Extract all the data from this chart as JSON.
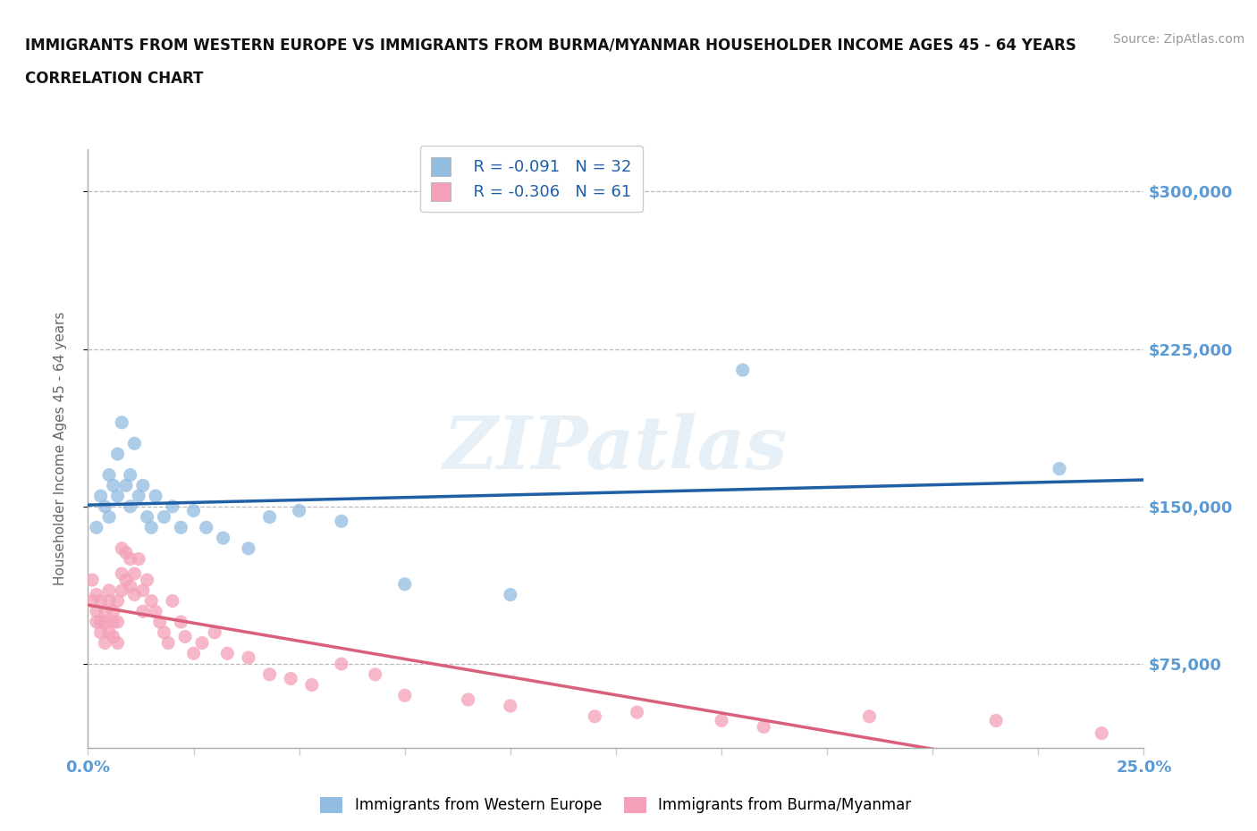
{
  "title_line1": "IMMIGRANTS FROM WESTERN EUROPE VS IMMIGRANTS FROM BURMA/MYANMAR HOUSEHOLDER INCOME AGES 45 - 64 YEARS",
  "title_line2": "CORRELATION CHART",
  "source_text": "Source: ZipAtlas.com",
  "watermark": "ZIPatlas",
  "ylabel": "Householder Income Ages 45 - 64 years",
  "xlim": [
    0.0,
    0.25
  ],
  "ylim": [
    35000,
    320000
  ],
  "xticks": [
    0.0,
    0.025,
    0.05,
    0.075,
    0.1,
    0.125,
    0.15,
    0.175,
    0.2,
    0.225,
    0.25
  ],
  "ytick_values": [
    75000,
    150000,
    225000,
    300000
  ],
  "ytick_labels": [
    "$75,000",
    "$150,000",
    "$225,000",
    "$300,000"
  ],
  "grid_values": [
    75000,
    150000,
    225000,
    300000
  ],
  "label_color": "#5b9bd5",
  "blue_dot_color": "#92bce0",
  "blue_line_color": "#1f5fa6",
  "pink_dot_color": "#f4a0b8",
  "pink_line_color": "#d9607a",
  "series": [
    {
      "name": "Immigrants from Western Europe",
      "R_label": "R = -0.091",
      "N_label": "N = 32",
      "color_key": "blue",
      "x": [
        0.002,
        0.003,
        0.004,
        0.005,
        0.005,
        0.006,
        0.007,
        0.007,
        0.008,
        0.009,
        0.01,
        0.01,
        0.011,
        0.012,
        0.013,
        0.014,
        0.015,
        0.016,
        0.018,
        0.02,
        0.022,
        0.025,
        0.028,
        0.032,
        0.038,
        0.043,
        0.05,
        0.06,
        0.075,
        0.1,
        0.155,
        0.23
      ],
      "y": [
        140000,
        155000,
        150000,
        145000,
        165000,
        160000,
        155000,
        175000,
        190000,
        160000,
        150000,
        165000,
        180000,
        155000,
        160000,
        145000,
        140000,
        155000,
        145000,
        150000,
        140000,
        148000,
        140000,
        135000,
        130000,
        145000,
        148000,
        143000,
        113000,
        108000,
        215000,
        168000
      ]
    },
    {
      "name": "Immigrants from Burma/Myanmar",
      "R_label": "R = -0.306",
      "N_label": "N = 61",
      "color_key": "pink",
      "x": [
        0.001,
        0.001,
        0.002,
        0.002,
        0.002,
        0.003,
        0.003,
        0.003,
        0.004,
        0.004,
        0.004,
        0.005,
        0.005,
        0.005,
        0.006,
        0.006,
        0.006,
        0.007,
        0.007,
        0.007,
        0.008,
        0.008,
        0.008,
        0.009,
        0.009,
        0.01,
        0.01,
        0.011,
        0.011,
        0.012,
        0.013,
        0.013,
        0.014,
        0.015,
        0.016,
        0.017,
        0.018,
        0.019,
        0.02,
        0.022,
        0.023,
        0.025,
        0.027,
        0.03,
        0.033,
        0.038,
        0.043,
        0.048,
        0.053,
        0.06,
        0.068,
        0.075,
        0.09,
        0.1,
        0.12,
        0.13,
        0.15,
        0.16,
        0.185,
        0.215,
        0.24
      ],
      "y": [
        115000,
        105000,
        100000,
        95000,
        108000,
        105000,
        95000,
        90000,
        100000,
        95000,
        85000,
        110000,
        105000,
        90000,
        100000,
        95000,
        88000,
        105000,
        95000,
        85000,
        130000,
        118000,
        110000,
        128000,
        115000,
        125000,
        112000,
        118000,
        108000,
        125000,
        110000,
        100000,
        115000,
        105000,
        100000,
        95000,
        90000,
        85000,
        105000,
        95000,
        88000,
        80000,
        85000,
        90000,
        80000,
        78000,
        70000,
        68000,
        65000,
        75000,
        70000,
        60000,
        58000,
        55000,
        50000,
        52000,
        48000,
        45000,
        50000,
        48000,
        42000
      ]
    }
  ]
}
